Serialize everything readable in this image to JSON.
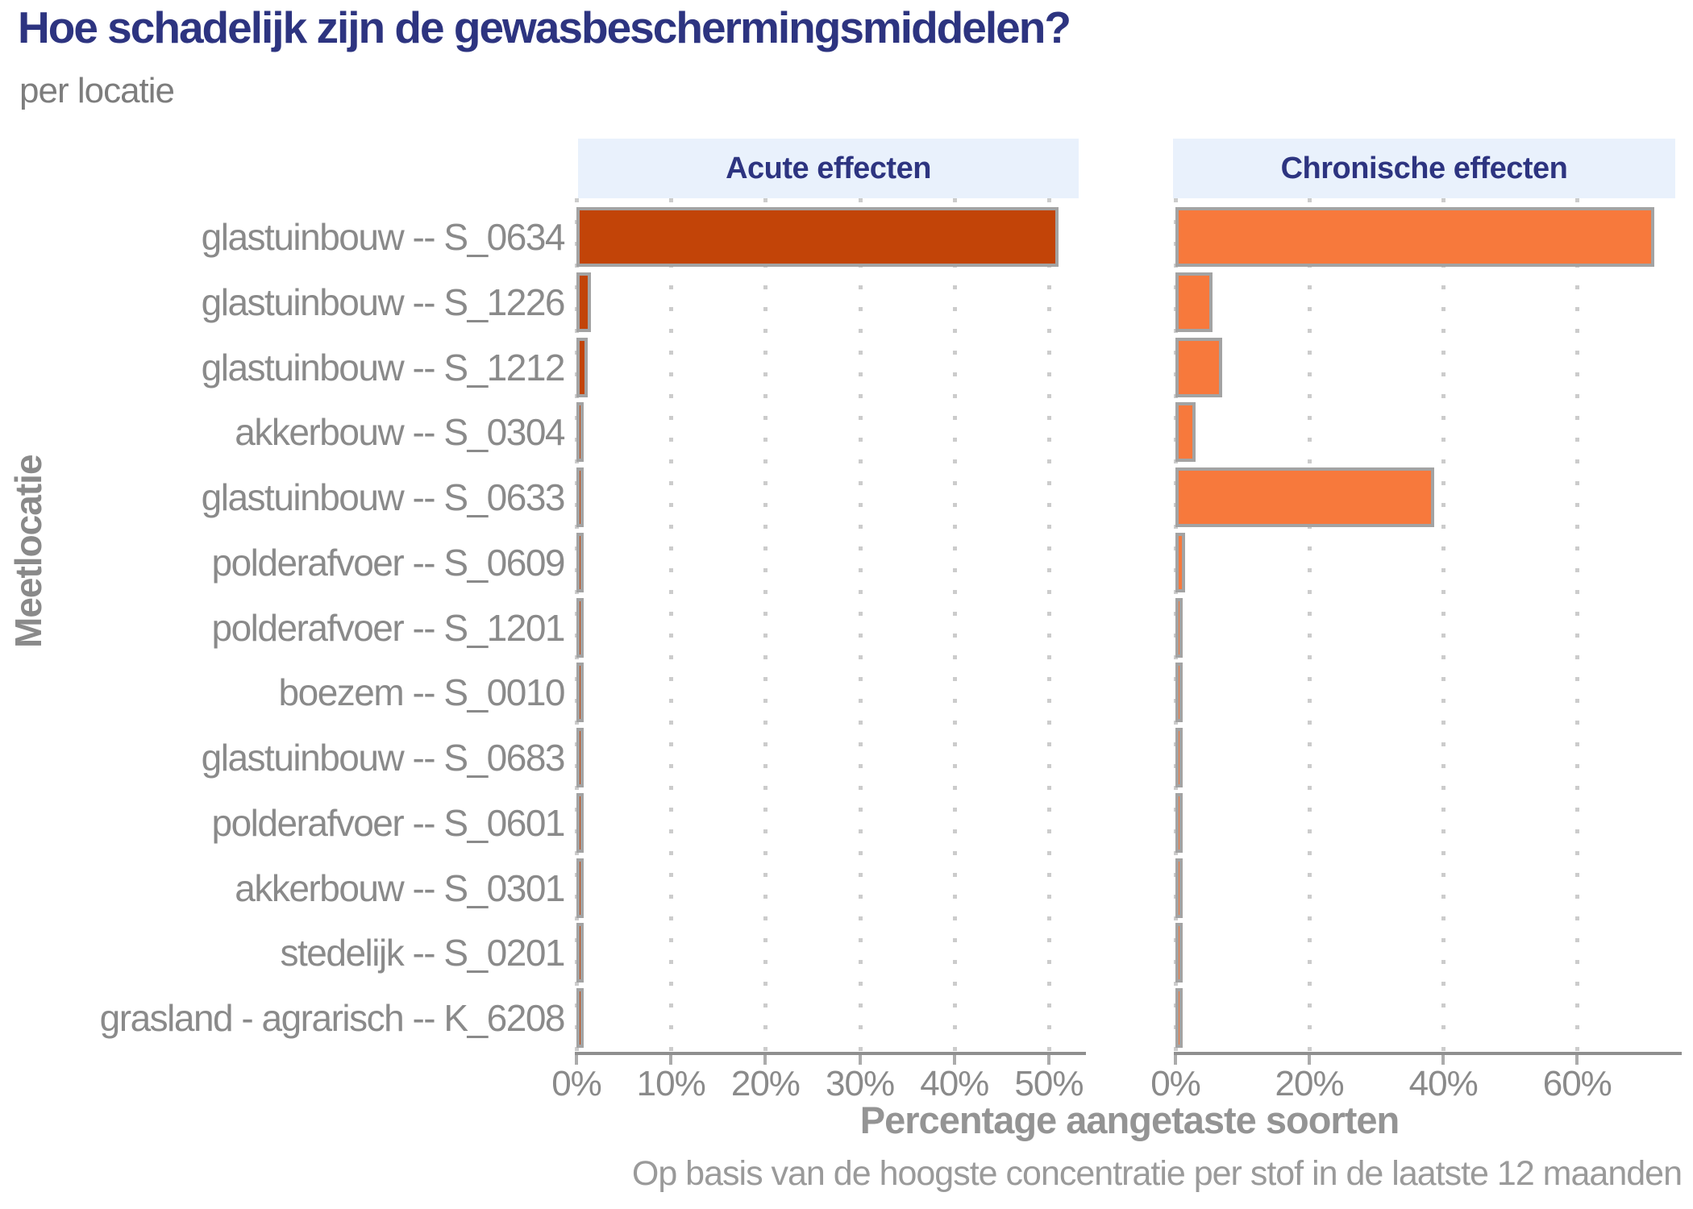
{
  "title": "Hoe schadelijk zijn de gewasbeschermingsmiddelen?",
  "subtitle": "per locatie",
  "y_axis_title": "Meetlocatie",
  "x_axis_title": "Percentage aangetaste soorten",
  "footnote": "Op basis van de hoogste concentratie per stof in de laatste 12 maanden",
  "colors": {
    "title_navy": "#2d3480",
    "panel_header_bg": "#e9f1fc",
    "acute_bar": "#c24408",
    "chronic_bar": "#f7793c",
    "bar_border": "#a3a3a3",
    "grid_dots": "#cccccc",
    "axis_line": "#8f8f8f",
    "label_gray": "#8a8a8a"
  },
  "chart_data": {
    "type": "bar",
    "orientation": "horizontal",
    "title": "Hoe schadelijk zijn de gewasbeschermingsmiddelen?",
    "subtitle": "per locatie",
    "xlabel": "Percentage aangetaste soorten",
    "ylabel": "Meetlocatie",
    "grid": "dotted-vertical",
    "tick_suffix": "%",
    "categories": [
      "glastuinbouw -- S_0634",
      "glastuinbouw -- S_1226",
      "glastuinbouw -- S_1212",
      "akkerbouw -- S_0304",
      "glastuinbouw -- S_0633",
      "polderafvoer -- S_0609",
      "polderafvoer -- S_1201",
      "boezem -- S_0010",
      "glastuinbouw -- S_0683",
      "polderafvoer -- S_0601",
      "akkerbouw -- S_0301",
      "stedelijk -- S_0201",
      "grasland - agrarisch -- K_6208"
    ],
    "series": [
      {
        "name": "Acute effecten",
        "color": "#c24408",
        "values": [
          51,
          1.5,
          1.2,
          0.5,
          0.25,
          0.15,
          0.1,
          0.05,
          0.1,
          0.1,
          0.05,
          0.05,
          0.05
        ],
        "ticks": [
          0,
          10,
          20,
          30,
          40,
          50
        ],
        "xlim": [
          0,
          53.5
        ]
      },
      {
        "name": "Chronische effecten",
        "color": "#f7793c",
        "values": [
          71.5,
          5.5,
          7,
          3,
          38.7,
          1.4,
          0.6,
          0.15,
          0.3,
          0.6,
          0.2,
          0.1,
          0.25
        ],
        "ticks": [
          0,
          20,
          40,
          60
        ],
        "xlim": [
          0,
          75.5
        ]
      }
    ]
  }
}
